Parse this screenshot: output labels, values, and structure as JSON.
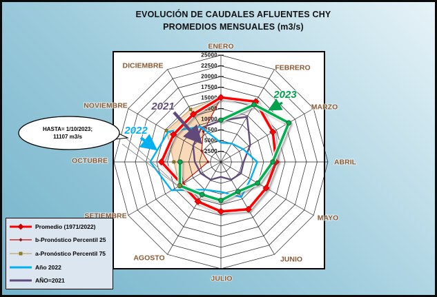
{
  "window": {
    "title_line1": "EVOLUCIÓN DE CAUDALES AFLUENTES CHY",
    "title_line2": "PROMEDIOS MENSUALES (m3/s)"
  },
  "callout": {
    "line1": "HASTA= 1/10/2023;",
    "line2": "11107 m3/s"
  },
  "annotations": [
    {
      "label": "2021",
      "color": "#604a7b"
    },
    {
      "label": "2022",
      "color": "#00b0f0"
    },
    {
      "label": "2023",
      "color": "#00a14b"
    }
  ],
  "legend": {
    "background": "#dce6f1",
    "items": [
      {
        "label": "Promedio (1971/2022)",
        "color": "#ff0000",
        "marker": "diamond",
        "marker_color": "#cc0000",
        "thick": true
      },
      {
        "label": "b-Pronóstico  Percentil 25",
        "color": "#c00000",
        "marker": "diamond",
        "marker_color": "#8b1a1a",
        "thick": false
      },
      {
        "label": "a-Pronóstico  Percentil 75",
        "color": "#c8a165",
        "marker": "square",
        "marker_color": "#8f7a1e",
        "thick": false
      },
      {
        "label": "Año 2022",
        "color": "#00b0f0",
        "marker": "none",
        "marker_color": "#00b0f0",
        "thick": true
      },
      {
        "label": "AÑO=2021",
        "color": "#604a7b",
        "marker": "none",
        "marker_color": "#604a7b",
        "thick": true
      }
    ]
  },
  "chart_data": {
    "type": "line",
    "subtype": "radar",
    "title": "EVOLUCIÓN DE CAUDALES AFLUENTES CHY — PROMEDIOS MENSUALES (m3/s)",
    "categories": [
      "ENERO",
      "FEBRERO",
      "MARZO",
      "ABRIL",
      "MAYO",
      "JUNIO",
      "JULIO",
      "AGOSTO",
      "SETIEMBRE",
      "OCTUBRE",
      "NOVIEMBRE",
      "DICIEMBRE"
    ],
    "radial_axis": {
      "min": 0,
      "max": 25000,
      "step": 2500,
      "ticks": [
        2500,
        5000,
        7500,
        10000,
        12500,
        15000,
        17500,
        20000,
        22500,
        25000
      ]
    },
    "grid": true,
    "legend_position": "bottom-left",
    "series": [
      {
        "name": "Promedio (1971/2022)",
        "color": "#ff0000",
        "marker": "diamond",
        "closed": true,
        "values": [
          15100,
          16300,
          14000,
          12900,
          12200,
          12800,
          11600,
          10700,
          10500,
          13900,
          12800,
          12900
        ]
      },
      {
        "name": "b-Pronóstico Percentil 25",
        "color": "#c00000",
        "marker": "small-diamond",
        "closed": false,
        "values": [
          15000,
          null,
          null,
          null,
          null,
          null,
          null,
          null,
          11107,
          3000,
          5200,
          8200
        ]
      },
      {
        "name": "a-Pronóstico Percentil 75",
        "color": "#c8a165",
        "marker": "small-square",
        "closed": false,
        "values": [
          15200,
          null,
          null,
          null,
          null,
          null,
          null,
          null,
          11107,
          11000,
          14700,
          14200
        ]
      },
      {
        "name": "Año 2022",
        "color": "#00b0f0",
        "marker": "none",
        "closed": true,
        "values": [
          4500,
          5000,
          6000,
          8500,
          8000,
          9500,
          7000,
          7500,
          13300,
          16500,
          14200,
          9500
        ]
      },
      {
        "name": "AÑO=2021",
        "color": "#604a7b",
        "marker": "none",
        "closed": true,
        "values": [
          9700,
          12200,
          7900,
          5300,
          5400,
          4800,
          3500,
          4800,
          5400,
          6100,
          7500,
          9200
        ]
      },
      {
        "name": "2023",
        "color": "#00b050",
        "marker": "circle",
        "closed": false,
        "values": [
          9800,
          15500,
          18300,
          12100,
          9900,
          8000,
          9000,
          8800,
          11107,
          9550,
          null,
          null
        ]
      }
    ],
    "band": {
      "between": [
        "a-Pronóstico Percentil 75",
        "b-Pronóstico Percentil 25"
      ],
      "fill": "#fad7b5"
    }
  }
}
